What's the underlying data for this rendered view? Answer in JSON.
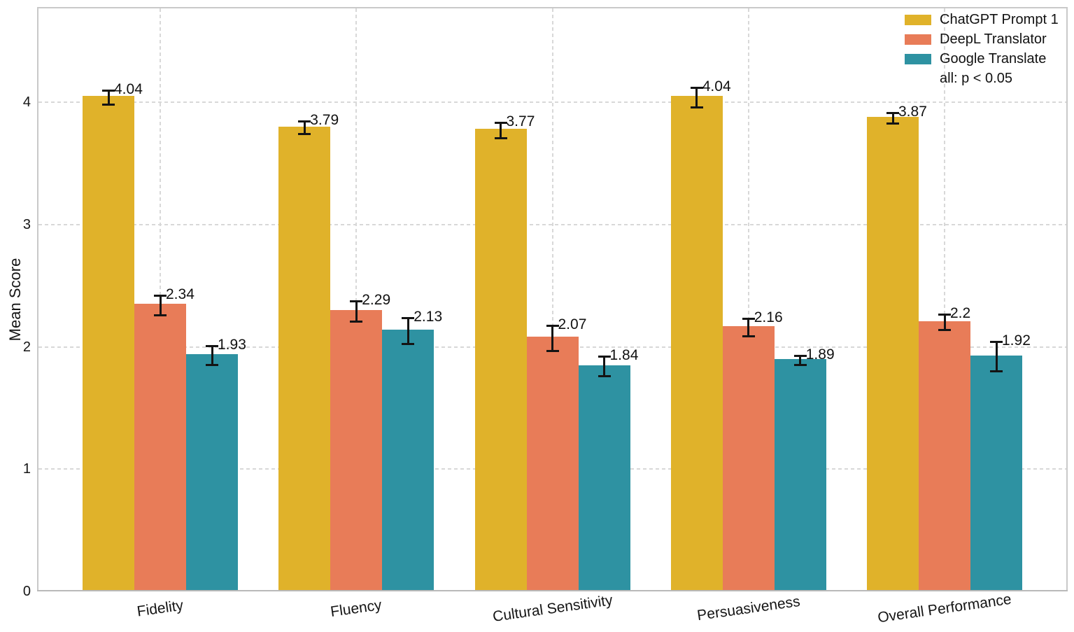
{
  "chart_data": {
    "type": "bar",
    "title": "",
    "xlabel": "",
    "ylabel": "Mean Score",
    "ylim": [
      0,
      4.78
    ],
    "yticks": [
      0,
      1,
      2,
      3,
      4
    ],
    "grid": "both-dashed",
    "legend_position": "upper right",
    "legend_note": "all: p < 0.05",
    "categories": [
      "Fidelity",
      "Fluency",
      "Cultural Sensitivity",
      "Persuasiveness",
      "Overall Performance"
    ],
    "series": [
      {
        "name": "ChatGPT Prompt 1",
        "color": "#E0B22A",
        "values": [
          4.04,
          3.79,
          3.77,
          4.04,
          3.87
        ],
        "labels": [
          "4.04",
          "3.79",
          "3.77",
          "4.04",
          "3.87"
        ],
        "errors": [
          0.065,
          0.06,
          0.07,
          0.09,
          0.05
        ]
      },
      {
        "name": "DeepL Translator",
        "color": "#E87C58",
        "values": [
          2.34,
          2.29,
          2.07,
          2.16,
          2.2
        ],
        "labels": [
          "2.34",
          "2.29",
          "2.07",
          "2.16",
          "2.2"
        ],
        "errors": [
          0.09,
          0.09,
          0.11,
          0.08,
          0.07
        ]
      },
      {
        "name": "Google Translate",
        "color": "#2E92A2",
        "values": [
          1.93,
          2.13,
          1.84,
          1.89,
          1.92
        ],
        "labels": [
          "1.93",
          "2.13",
          "1.84",
          "1.89",
          "1.92"
        ],
        "errors": [
          0.085,
          0.115,
          0.09,
          0.045,
          0.13
        ]
      }
    ]
  },
  "colors": {
    "background": "#ffffff",
    "grid": "#d8d8d8",
    "spine": "#c9c9c9",
    "error_bar": "#141414",
    "text": "#151515"
  }
}
